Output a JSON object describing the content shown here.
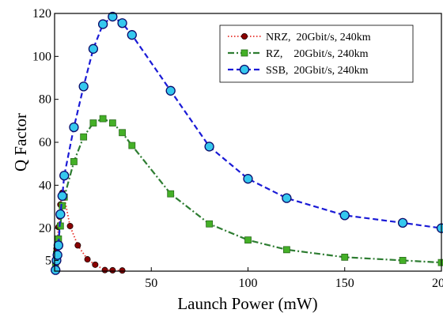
{
  "chart_data": {
    "type": "line",
    "xlabel": "Launch Power (mW)",
    "ylabel": "Q Factor",
    "xlim": [
      0,
      200
    ],
    "ylim": [
      0,
      120
    ],
    "xticks": [
      50,
      100,
      150,
      200
    ],
    "xtick_labels": [
      "50",
      "100",
      "150",
      "200"
    ],
    "yticks": [
      5,
      20,
      40,
      60,
      80,
      100,
      120
    ],
    "ytick_labels": [
      "5",
      "20",
      "40",
      "60",
      "80",
      "100",
      "120"
    ],
    "grid": false,
    "legend_position": "top-right",
    "series": [
      {
        "name": "NRZ,  20Gbit/s, 240km",
        "color": "#e8302a",
        "marker_color": "#8b0000",
        "line_style": "dotted",
        "marker": "circle-small",
        "x": [
          0.5,
          0.8,
          1.0,
          1.5,
          2.0,
          2.5,
          3.0,
          4.0,
          5.0,
          8.0,
          12.0,
          17.0,
          21.0,
          26.0,
          30.0,
          35.0
        ],
        "y": [
          0.3,
          5.5,
          10.5,
          15.0,
          20.5,
          25.5,
          31.0,
          36.5,
          34.5,
          21.0,
          12.0,
          5.5,
          3.0,
          0.5,
          0.4,
          0.3
        ]
      },
      {
        "name": "RZ,    20Gbit/s, 240km",
        "color": "#2e7d32",
        "marker_color": "#44b027",
        "line_style": "dashdot",
        "marker": "square",
        "x": [
          0.5,
          1.0,
          2.0,
          3.0,
          4.0,
          5.0,
          10.0,
          15.0,
          20.0,
          25.0,
          30.0,
          35.0,
          40.0,
          60.0,
          80.0,
          100.0,
          120.0,
          150.0,
          180.0,
          200.0
        ],
        "y": [
          4.0,
          8.0,
          15.0,
          21.0,
          30.5,
          34.5,
          51.0,
          62.5,
          69.0,
          71.0,
          69.0,
          64.5,
          58.5,
          36.0,
          22.0,
          14.5,
          10.0,
          6.5,
          5.0,
          4.0
        ]
      },
      {
        "name": "SSB,  20Gbit/s, 240km",
        "color": "#1a1ad6",
        "marker_color": "#35c8ee",
        "line_style": "dashed",
        "marker": "circle-large",
        "x": [
          0.5,
          1.0,
          1.5,
          2.0,
          3.0,
          4.0,
          5.0,
          10.0,
          15.0,
          20.0,
          25.0,
          30.0,
          35.0,
          40.0,
          60.0,
          80.0,
          100.0,
          120.0,
          150.0,
          180.0,
          200.0
        ],
        "y": [
          0.5,
          5.0,
          7.5,
          12.0,
          26.5,
          35.0,
          44.5,
          67.0,
          86.0,
          103.5,
          115.0,
          118.5,
          115.5,
          110.0,
          84.0,
          58.0,
          43.0,
          34.0,
          26.0,
          22.5,
          20.0
        ]
      }
    ]
  }
}
